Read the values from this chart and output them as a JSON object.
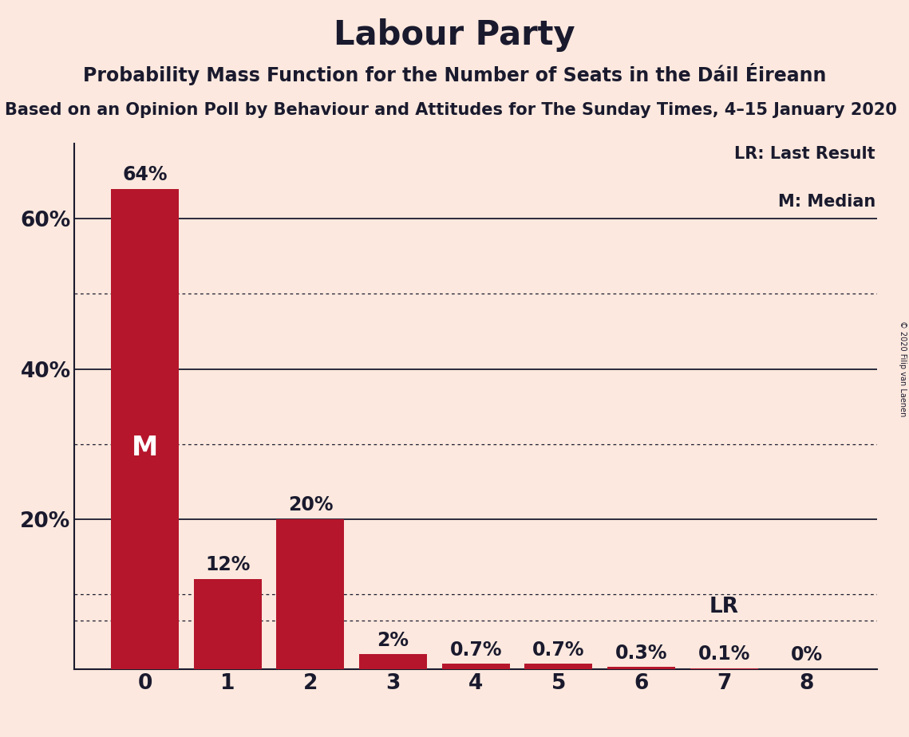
{
  "title": "Labour Party",
  "subtitle": "Probability Mass Function for the Number of Seats in the Dáil Éireann",
  "subsubtitle": "Based on an Opinion Poll by Behaviour and Attitudes for The Sunday Times, 4–15 January 2020",
  "copyright": "© 2020 Filip van Laenen",
  "categories": [
    0,
    1,
    2,
    3,
    4,
    5,
    6,
    7,
    8
  ],
  "values": [
    0.64,
    0.12,
    0.2,
    0.02,
    0.007,
    0.007,
    0.003,
    0.001,
    0.0
  ],
  "value_labels": [
    "64%",
    "12%",
    "20%",
    "2%",
    "0.7%",
    "0.7%",
    "0.3%",
    "0.1%",
    "0%"
  ],
  "bar_color": "#b5162c",
  "background_color": "#fce8de",
  "text_color": "#1a1a2e",
  "median_bar": 0,
  "lr_bar": 7,
  "lr_value": 0.065,
  "ylim": [
    0,
    0.7
  ],
  "yticks": [
    0.0,
    0.2,
    0.4,
    0.6
  ],
  "ytick_labels": [
    "",
    "20%",
    "40%",
    "60%"
  ],
  "solid_lines": [
    0.2,
    0.4,
    0.6
  ],
  "dotted_lines": [
    0.1,
    0.3,
    0.5
  ],
  "legend_lr": "LR: Last Result",
  "legend_m": "M: Median",
  "title_fontsize": 30,
  "subtitle_fontsize": 17,
  "subsubtitle_fontsize": 15,
  "axis_fontsize": 19,
  "bar_label_fontsize": 17,
  "median_label_fontsize": 24,
  "lr_fontsize": 19
}
